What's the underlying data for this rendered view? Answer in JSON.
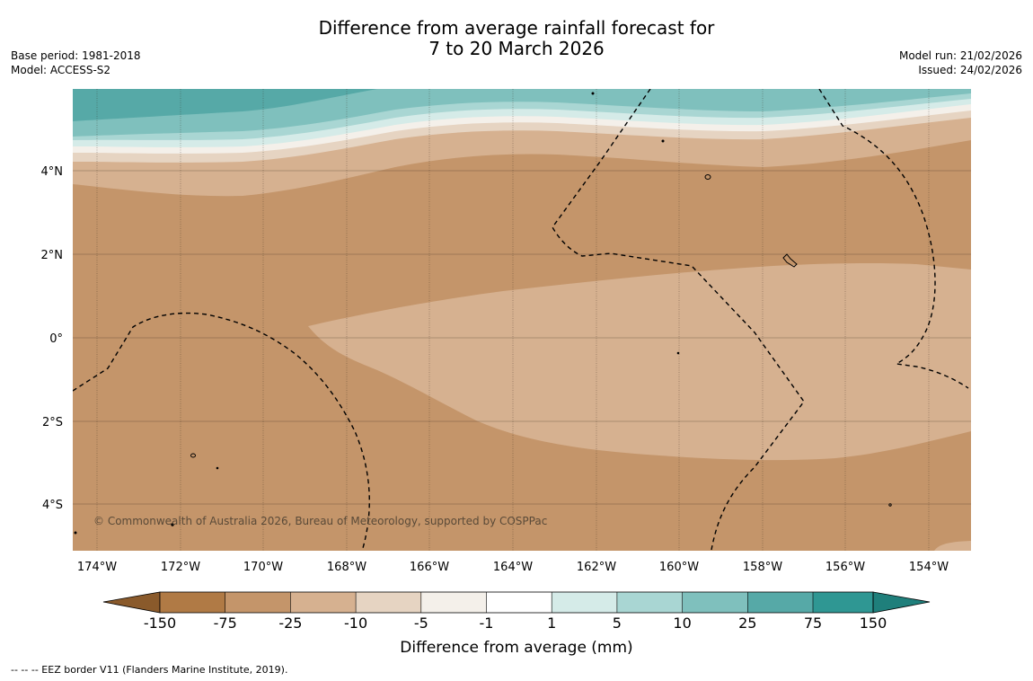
{
  "title": {
    "line1": "Difference from average rainfall forecast for",
    "line2": "7 to 20 March 2026"
  },
  "info_left": {
    "base_period": "Base period: 1981-2018",
    "model": "Model: ACCESS-S2"
  },
  "info_right": {
    "model_run": "Model run: 21/02/2026",
    "issued": "Issued: 24/02/2026"
  },
  "map": {
    "lat_labels": [
      "4°N",
      "2°N",
      "0°",
      "2°S",
      "4°S"
    ],
    "lon_labels": [
      "174°W",
      "172°W",
      "170°W",
      "168°W",
      "166°W",
      "164°W",
      "162°W",
      "160°W",
      "158°W",
      "156°W",
      "154°W"
    ],
    "copyright": "© Commonwealth of Australia 2026, Bureau of Meteorology, supported by COSPPac"
  },
  "colorbar": {
    "ticks": [
      "-150",
      "-75",
      "-25",
      "-10",
      "-5",
      "-1",
      "1",
      "5",
      "10",
      "25",
      "75",
      "150"
    ],
    "colors": [
      "#8a5a2b",
      "#b07a45",
      "#c4956a",
      "#d6b190",
      "#e6d4c2",
      "#f4f0ea",
      "#ffffff",
      "#d5ebe8",
      "#a9d6d3",
      "#7fc0bd",
      "#56a9a7",
      "#2f9793",
      "#1f7f7b"
    ],
    "label": "Difference from average (mm)"
  },
  "footer": "--  --  -- EEZ border V11 (Flanders Marine Institute, 2019)."
}
